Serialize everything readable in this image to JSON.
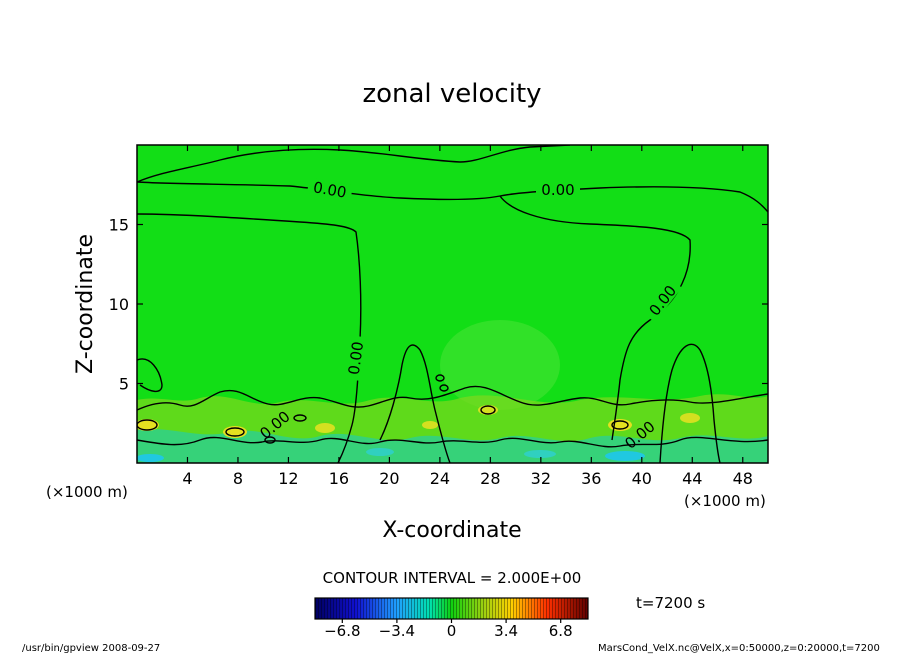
{
  "chart_data": {
    "type": "heatmap",
    "title": "zonal velocity",
    "xlabel": "X-coordinate",
    "ylabel": "Z-coordinate",
    "x_unit_note": "(×1000 m)",
    "y_unit_note": "(×1000 m)",
    "xlim": [
      0,
      50
    ],
    "ylim": [
      0,
      20
    ],
    "x_ticks": [
      4,
      8,
      12,
      16,
      20,
      24,
      28,
      32,
      36,
      40,
      44,
      48
    ],
    "y_ticks": [
      5,
      10,
      15
    ],
    "contour_interval_label": "CONTOUR INTERVAL = 2.000E+00",
    "contour_labels": [
      "0.00",
      "0.00",
      "0.00",
      "0.00",
      "0.00",
      "0.00"
    ],
    "colorbar": {
      "range": [
        -8.5,
        8.5
      ],
      "tick_values": [
        -6.8,
        -3.4,
        0,
        3.4,
        6.8
      ],
      "tick_labels": [
        "−6.8",
        "−3.4",
        "0",
        "3.4",
        "6.8"
      ]
    },
    "time_label": "t=7200 s",
    "footer_left": "/usr/bin/gpview  2008-09-27",
    "footer_right": "MarsCond_VelX.nc@VelX,x=0:50000,z=0:20000,t=7200"
  }
}
